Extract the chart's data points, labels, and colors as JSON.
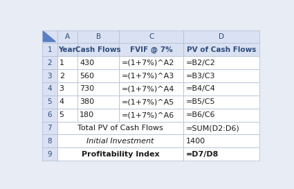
{
  "col_letters": [
    "A",
    "B",
    "C",
    "D"
  ],
  "header_row": [
    "Year",
    "Cash Flows",
    "FVIF @ 7%",
    "PV of Cash Flows"
  ],
  "data_rows": [
    [
      "1",
      "430",
      "=(1+7%)^A2",
      "=B2/C2"
    ],
    [
      "2",
      "560",
      "=(1+7%)^A3",
      "=B3/C3"
    ],
    [
      "3",
      "730",
      "=(1+7%)^A4",
      "=B4/C4"
    ],
    [
      "4",
      "380",
      "=(1+7%)^A5",
      "=B5/C5"
    ],
    [
      "5",
      "180",
      "=(1+7%)^A6",
      "=B6/C6"
    ]
  ],
  "row7": [
    "Total PV of Cash Flows",
    "=SUM(D2:D6)"
  ],
  "row8": [
    "Initial Investment",
    "1400"
  ],
  "row9": [
    "Profitability Index",
    "=D7/D8"
  ],
  "header_bg": "#d9e1f2",
  "row_num_bg": "#d9e1f2",
  "white_bg": "#ffffff",
  "border_color": "#b8c4d8",
  "text_color_blue": "#2e4b7b",
  "text_color_black": "#1a1a1a",
  "fig_bg": "#e8edf5",
  "tri_color": "#5b7fc4"
}
